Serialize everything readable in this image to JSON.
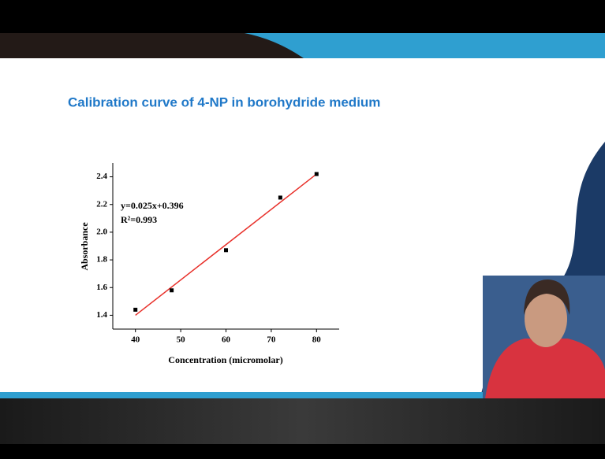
{
  "slide": {
    "title": "Calibration curve of 4-NP in borohydride medium"
  },
  "chart_data": {
    "type": "scatter",
    "x": [
      40,
      48,
      60,
      72,
      80
    ],
    "values": [
      1.44,
      1.58,
      1.87,
      2.25,
      2.42
    ],
    "color": "#000000",
    "fit_line": {
      "x": [
        40,
        80
      ],
      "values": [
        1.4,
        2.42
      ],
      "color": "#e8302a"
    },
    "annotations": [
      "y=0.025x+0.396",
      "R²=0.993"
    ],
    "x_label": "Concentration (micromolar)",
    "y_label": "Absorbance",
    "xlim": [
      35,
      85
    ],
    "xticks": [
      40,
      50,
      60,
      70,
      80
    ],
    "ylim": [
      1.3,
      2.5
    ],
    "yticks": [
      1.4,
      1.6,
      1.8,
      {
        "value": 2,
        "label": "2.0"
      },
      2.2,
      2.4
    ]
  }
}
